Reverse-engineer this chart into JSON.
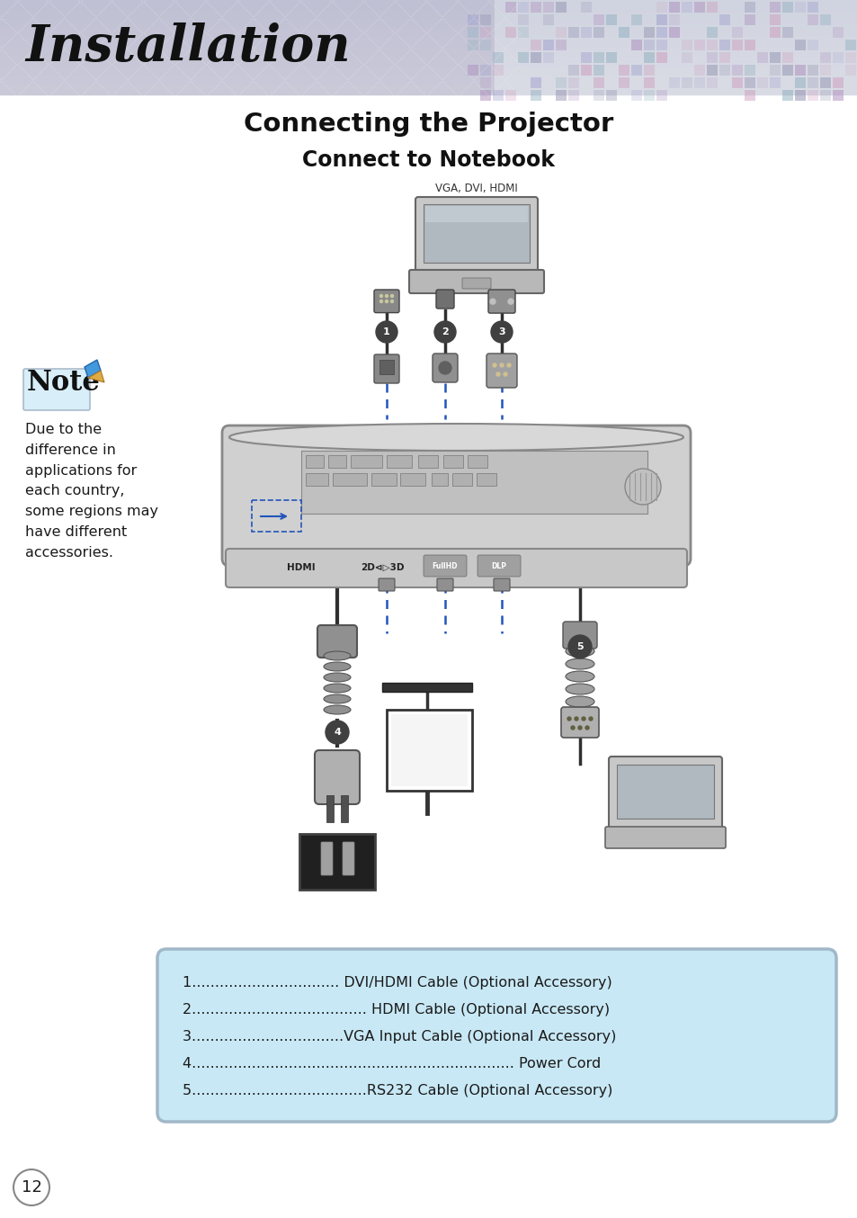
{
  "title1": "Connecting the Projector",
  "title2": "Connect to Notebook",
  "header_text": "Installation",
  "page_number": "12",
  "note_text": "Due to the\ndifference in\napplications for\neach country,\nsome regions may\nhave different\naccessories.",
  "legend_items": [
    "1................................ DVI/HDMI Cable (Optional Accessory)",
    "2...................................... HDMI Cable (Optional Accessory)",
    "3.................................VGA Input Cable (Optional Accessory)",
    "4...................................................................... Power Cord",
    "5......................................RS232 Cable (Optional Accessory)"
  ],
  "vga_dvi_hdmi_label": "VGA, DVI, HDMI",
  "legend_bg_color": "#c8e8f5",
  "legend_border_color": "#a0b8c8",
  "body_bg": "#ffffff",
  "text_color": "#1a1a1a",
  "title_color": "#111111",
  "title2_color": "#111111",
  "header_left_color": "#c5c5d5",
  "header_right_color": "#d8dce8",
  "cable_color": "#303030",
  "dash_color": "#2255bb",
  "connector_color": "#808080",
  "projector_body_color": "#d0d0d0",
  "projector_edge_color": "#888888",
  "note_box_color": "#ddeeff",
  "note_box_edge": "#aabbcc",
  "note_text_color": "#1a1a8a",
  "number_circle_color": "#404040",
  "number_text_color": "#ffffff"
}
